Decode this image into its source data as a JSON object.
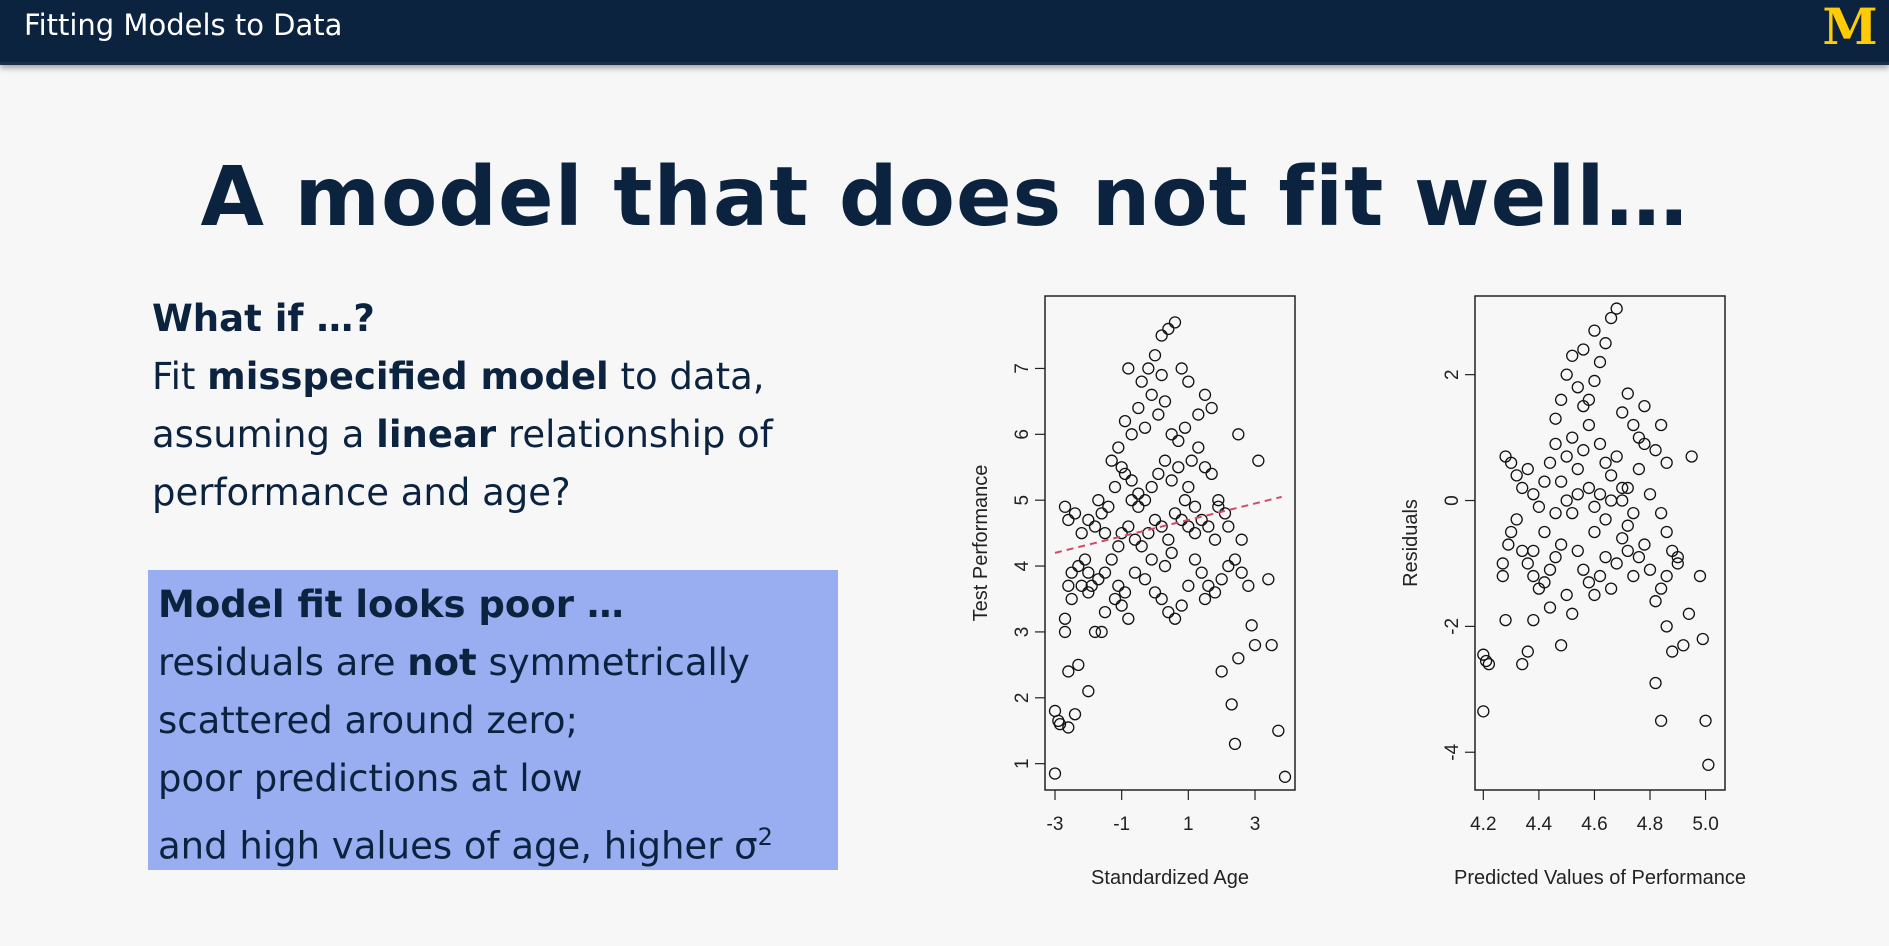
{
  "header": {
    "title": "Fitting Models to Data",
    "logo_text": "M",
    "logo_color": "#ffcb05",
    "bar_color": "#0c2340"
  },
  "slide": {
    "title": "A model that does not fit well…"
  },
  "left_text": {
    "heading": "What if …?",
    "l2a": "Fit ",
    "l2b": "misspecified model",
    "l2c": " to data,",
    "l3a": "assuming a ",
    "l3b": "linear",
    "l3c": " relationship of",
    "l4": "performance and age?"
  },
  "callout": {
    "heading": "Model fit looks poor …",
    "l2a": "residuals are ",
    "l2b": "not",
    "l2c": " symmetrically",
    "l3": "scattered around zero;",
    "l4": "poor predictions at low",
    "l5a": "and high values of age, higher σ",
    "l5b": "2",
    "bg_color": "#99aef0"
  },
  "chart_data": [
    {
      "type": "scatter",
      "title": "",
      "xlabel": "Standardized Age",
      "ylabel": "Test Performance",
      "xlim": [
        -3.3,
        4.2
      ],
      "ylim": [
        0.6,
        8.1
      ],
      "xticks": [
        "-3",
        "-1",
        "1",
        "3"
      ],
      "yticks": [
        "1",
        "2",
        "3",
        "4",
        "5",
        "6",
        "7"
      ],
      "fit_line": {
        "x": [
          -3.0,
          3.8
        ],
        "y": [
          4.2,
          5.05
        ],
        "color": "#d14a6a",
        "style": "dashed"
      },
      "points": [
        [
          -3.0,
          1.8
        ],
        [
          -2.9,
          1.65
        ],
        [
          -2.85,
          1.6
        ],
        [
          -3.0,
          0.85
        ],
        [
          -2.6,
          1.55
        ],
        [
          -2.4,
          1.75
        ],
        [
          -2.6,
          2.4
        ],
        [
          -2.0,
          2.1
        ],
        [
          -2.3,
          2.5
        ],
        [
          -2.7,
          3.0
        ],
        [
          -2.7,
          3.2
        ],
        [
          -2.5,
          3.5
        ],
        [
          -2.2,
          3.7
        ],
        [
          -2.0,
          3.6
        ],
        [
          -1.8,
          3.0
        ],
        [
          -1.6,
          3.0
        ],
        [
          -1.5,
          3.3
        ],
        [
          -1.2,
          3.5
        ],
        [
          -1.0,
          3.4
        ],
        [
          -0.8,
          3.2
        ],
        [
          -2.6,
          3.7
        ],
        [
          -2.5,
          3.9
        ],
        [
          -2.3,
          4.0
        ],
        [
          -2.1,
          4.1
        ],
        [
          -2.0,
          3.9
        ],
        [
          -1.9,
          3.7
        ],
        [
          -1.7,
          3.8
        ],
        [
          -1.5,
          3.9
        ],
        [
          -1.3,
          4.1
        ],
        [
          -1.1,
          4.3
        ],
        [
          -2.7,
          4.9
        ],
        [
          -2.6,
          4.7
        ],
        [
          -2.4,
          4.8
        ],
        [
          -2.2,
          4.5
        ],
        [
          -2.0,
          4.7
        ],
        [
          -1.8,
          4.6
        ],
        [
          -1.6,
          4.8
        ],
        [
          -1.4,
          4.9
        ],
        [
          -1.2,
          5.2
        ],
        [
          -1.0,
          5.5
        ],
        [
          -1.3,
          5.6
        ],
        [
          -1.1,
          5.8
        ],
        [
          -0.9,
          5.4
        ],
        [
          -0.7,
          5.3
        ],
        [
          -0.5,
          5.1
        ],
        [
          -0.3,
          5.0
        ],
        [
          -0.1,
          5.2
        ],
        [
          0.1,
          5.4
        ],
        [
          0.3,
          5.6
        ],
        [
          0.5,
          5.3
        ],
        [
          -1.0,
          4.5
        ],
        [
          -0.8,
          4.6
        ],
        [
          -0.6,
          4.4
        ],
        [
          -0.4,
          4.3
        ],
        [
          -0.2,
          4.5
        ],
        [
          0.0,
          4.7
        ],
        [
          0.2,
          4.6
        ],
        [
          0.4,
          4.4
        ],
        [
          0.6,
          4.8
        ],
        [
          0.8,
          4.7
        ],
        [
          -1.1,
          3.7
        ],
        [
          -0.9,
          3.6
        ],
        [
          -0.6,
          3.9
        ],
        [
          -0.3,
          3.8
        ],
        [
          0.0,
          3.6
        ],
        [
          0.2,
          3.5
        ],
        [
          0.4,
          3.3
        ],
        [
          0.6,
          3.2
        ],
        [
          0.8,
          3.4
        ],
        [
          1.0,
          3.7
        ],
        [
          -0.9,
          6.2
        ],
        [
          -0.7,
          6.0
        ],
        [
          -0.5,
          6.4
        ],
        [
          -0.3,
          6.1
        ],
        [
          -0.1,
          6.6
        ],
        [
          0.1,
          6.3
        ],
        [
          0.3,
          6.5
        ],
        [
          0.5,
          6.0
        ],
        [
          0.7,
          5.9
        ],
        [
          0.9,
          6.1
        ],
        [
          -0.8,
          7.0
        ],
        [
          -0.4,
          6.8
        ],
        [
          0.0,
          7.2
        ],
        [
          0.2,
          7.5
        ],
        [
          0.4,
          7.6
        ],
        [
          0.6,
          7.7
        ],
        [
          0.8,
          7.0
        ],
        [
          0.2,
          6.9
        ],
        [
          -0.2,
          7.0
        ],
        [
          1.0,
          6.8
        ],
        [
          1.1,
          5.6
        ],
        [
          1.3,
          5.8
        ],
        [
          1.5,
          5.5
        ],
        [
          1.7,
          5.4
        ],
        [
          1.9,
          5.0
        ],
        [
          2.1,
          4.8
        ],
        [
          1.2,
          4.9
        ],
        [
          1.4,
          4.7
        ],
        [
          1.6,
          4.6
        ],
        [
          1.8,
          4.4
        ],
        [
          1.2,
          4.1
        ],
        [
          1.4,
          3.9
        ],
        [
          1.6,
          3.7
        ],
        [
          1.8,
          3.6
        ],
        [
          2.0,
          3.8
        ],
        [
          2.2,
          4.0
        ],
        [
          2.4,
          4.1
        ],
        [
          2.6,
          3.9
        ],
        [
          2.8,
          3.7
        ],
        [
          1.5,
          3.5
        ],
        [
          1.3,
          6.3
        ],
        [
          1.5,
          6.6
        ],
        [
          1.7,
          6.4
        ],
        [
          2.5,
          6.0
        ],
        [
          3.1,
          5.6
        ],
        [
          2.9,
          3.1
        ],
        [
          3.0,
          2.8
        ],
        [
          2.5,
          2.6
        ],
        [
          2.0,
          2.4
        ],
        [
          2.3,
          1.9
        ],
        [
          2.4,
          1.3
        ],
        [
          3.5,
          2.8
        ],
        [
          3.7,
          1.5
        ],
        [
          3.9,
          0.8
        ],
        [
          1.0,
          4.6
        ],
        [
          1.2,
          4.5
        ],
        [
          0.9,
          5.0
        ],
        [
          0.5,
          4.2
        ],
        [
          0.3,
          4.0
        ],
        [
          -0.1,
          4.1
        ],
        [
          -0.5,
          4.9
        ],
        [
          -0.7,
          5.0
        ],
        [
          0.7,
          5.5
        ],
        [
          1.0,
          5.2
        ],
        [
          1.9,
          4.9
        ],
        [
          2.2,
          4.6
        ],
        [
          2.6,
          4.4
        ],
        [
          3.4,
          3.8
        ],
        [
          -1.5,
          4.5
        ],
        [
          -1.7,
          5.0
        ]
      ]
    },
    {
      "type": "scatter",
      "title": "",
      "xlabel": "Predicted Values of Performance",
      "ylabel": "Residuals",
      "xlim": [
        4.17,
        5.07
      ],
      "ylim": [
        -4.6,
        3.25
      ],
      "xticks": [
        "4.2",
        "4.4",
        "4.6",
        "4.8",
        "5.0"
      ],
      "yticks": [
        "-4",
        "-2",
        "0",
        "2"
      ],
      "points": [
        [
          4.2,
          -2.45
        ],
        [
          4.21,
          -2.55
        ],
        [
          4.22,
          -2.6
        ],
        [
          4.2,
          -3.35
        ],
        [
          4.28,
          -1.9
        ],
        [
          4.27,
          -1.2
        ],
        [
          4.27,
          -1.0
        ],
        [
          4.29,
          -0.7
        ],
        [
          4.3,
          -0.5
        ],
        [
          4.32,
          -0.3
        ],
        [
          4.28,
          0.7
        ],
        [
          4.3,
          0.6
        ],
        [
          4.32,
          0.4
        ],
        [
          4.34,
          0.2
        ],
        [
          4.36,
          0.5
        ],
        [
          4.38,
          0.1
        ],
        [
          4.4,
          -0.1
        ],
        [
          4.42,
          0.3
        ],
        [
          4.44,
          0.6
        ],
        [
          4.46,
          0.9
        ],
        [
          4.34,
          -0.8
        ],
        [
          4.36,
          -1.0
        ],
        [
          4.38,
          -1.2
        ],
        [
          4.4,
          -1.4
        ],
        [
          4.42,
          -1.3
        ],
        [
          4.44,
          -1.1
        ],
        [
          4.46,
          -0.9
        ],
        [
          4.48,
          -0.7
        ],
        [
          4.5,
          -1.5
        ],
        [
          4.52,
          -1.8
        ],
        [
          4.34,
          -2.6
        ],
        [
          4.36,
          -2.4
        ],
        [
          4.38,
          -1.9
        ],
        [
          4.44,
          -1.7
        ],
        [
          4.48,
          -2.3
        ],
        [
          4.46,
          1.3
        ],
        [
          4.48,
          1.6
        ],
        [
          4.5,
          2.0
        ],
        [
          4.52,
          2.3
        ],
        [
          4.54,
          1.8
        ],
        [
          4.56,
          1.5
        ],
        [
          4.58,
          1.2
        ],
        [
          4.6,
          1.9
        ],
        [
          4.62,
          2.2
        ],
        [
          4.64,
          2.5
        ],
        [
          4.66,
          2.9
        ],
        [
          4.68,
          3.05
        ],
        [
          4.6,
          2.7
        ],
        [
          4.56,
          2.4
        ],
        [
          4.52,
          1.0
        ],
        [
          4.48,
          0.3
        ],
        [
          4.5,
          0.0
        ],
        [
          4.52,
          -0.2
        ],
        [
          4.54,
          0.5
        ],
        [
          4.56,
          0.8
        ],
        [
          4.58,
          0.2
        ],
        [
          4.6,
          -0.1
        ],
        [
          4.62,
          0.1
        ],
        [
          4.64,
          -0.3
        ],
        [
          4.66,
          0.4
        ],
        [
          4.68,
          0.7
        ],
        [
          4.7,
          0.0
        ],
        [
          4.72,
          0.2
        ],
        [
          4.74,
          -0.2
        ],
        [
          4.76,
          0.5
        ],
        [
          4.78,
          0.9
        ],
        [
          4.8,
          0.1
        ],
        [
          4.54,
          -0.8
        ],
        [
          4.56,
          -1.1
        ],
        [
          4.58,
          -1.3
        ],
        [
          4.6,
          -1.5
        ],
        [
          4.62,
          -1.2
        ],
        [
          4.64,
          -0.9
        ],
        [
          4.66,
          -1.4
        ],
        [
          4.68,
          -1.0
        ],
        [
          4.7,
          -0.6
        ],
        [
          4.72,
          -0.4
        ],
        [
          4.74,
          -1.2
        ],
        [
          4.76,
          -0.9
        ],
        [
          4.78,
          -0.7
        ],
        [
          4.7,
          1.4
        ],
        [
          4.72,
          1.7
        ],
        [
          4.74,
          1.2
        ],
        [
          4.76,
          1.0
        ],
        [
          4.78,
          1.5
        ],
        [
          4.82,
          0.8
        ],
        [
          4.84,
          1.2
        ],
        [
          4.86,
          0.6
        ],
        [
          4.84,
          -0.2
        ],
        [
          4.86,
          -0.5
        ],
        [
          4.88,
          -0.8
        ],
        [
          4.9,
          -1.0
        ],
        [
          4.86,
          -1.2
        ],
        [
          4.84,
          -1.4
        ],
        [
          4.8,
          -1.1
        ],
        [
          4.82,
          -1.6
        ],
        [
          4.86,
          -2.0
        ],
        [
          4.88,
          -2.4
        ],
        [
          4.82,
          -2.9
        ],
        [
          4.84,
          -3.5
        ],
        [
          4.92,
          -2.3
        ],
        [
          4.94,
          -1.8
        ],
        [
          4.98,
          -1.2
        ],
        [
          4.99,
          -2.2
        ],
        [
          5.0,
          -3.5
        ],
        [
          5.01,
          -4.2
        ],
        [
          4.95,
          0.7
        ],
        [
          4.9,
          -0.9
        ],
        [
          4.62,
          0.9
        ],
        [
          4.58,
          1.6
        ],
        [
          4.54,
          0.1
        ],
        [
          4.5,
          0.7
        ],
        [
          4.46,
          -0.2
        ],
        [
          4.42,
          -0.5
        ],
        [
          4.38,
          -0.8
        ],
        [
          4.7,
          0.2
        ],
        [
          4.72,
          -0.8
        ],
        [
          4.66,
          0.0
        ],
        [
          4.64,
          0.6
        ],
        [
          4.6,
          -0.5
        ]
      ]
    }
  ]
}
